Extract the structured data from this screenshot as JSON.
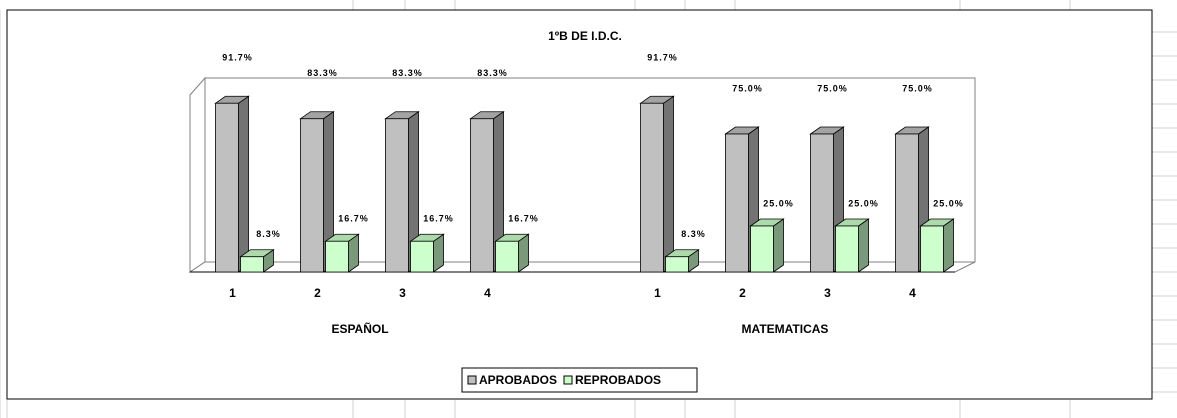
{
  "chart_data": {
    "type": "bar3d",
    "title": "1ºB  DE  I.D.C.",
    "categories": [
      "1",
      "2",
      "3",
      "4",
      "1",
      "2",
      "3",
      "4"
    ],
    "groups": [
      "ESPAÑOL",
      "MATEMATICAS"
    ],
    "series": [
      {
        "name": "APROBADOS",
        "color": "#c0c0c0",
        "values": [
          91.7,
          83.3,
          83.3,
          83.3,
          91.7,
          75.0,
          75.0,
          75.0
        ],
        "value_labels": [
          "91.7%",
          "83.3%",
          "83.3%",
          "83.3%",
          "91.7%",
          "75.0%",
          "75.0%",
          "75.0%"
        ]
      },
      {
        "name": "REPROBADOS",
        "color": "#ccffcc",
        "values": [
          8.3,
          16.7,
          16.7,
          16.7,
          8.3,
          25.0,
          25.0,
          25.0
        ],
        "value_labels": [
          "8.3%",
          "16.7%",
          "16.7%",
          "16.7%",
          "8.3%",
          "25.0%",
          "25.0%",
          "25.0%"
        ]
      }
    ],
    "ylim": [
      0,
      100
    ],
    "legend": "bottom"
  }
}
